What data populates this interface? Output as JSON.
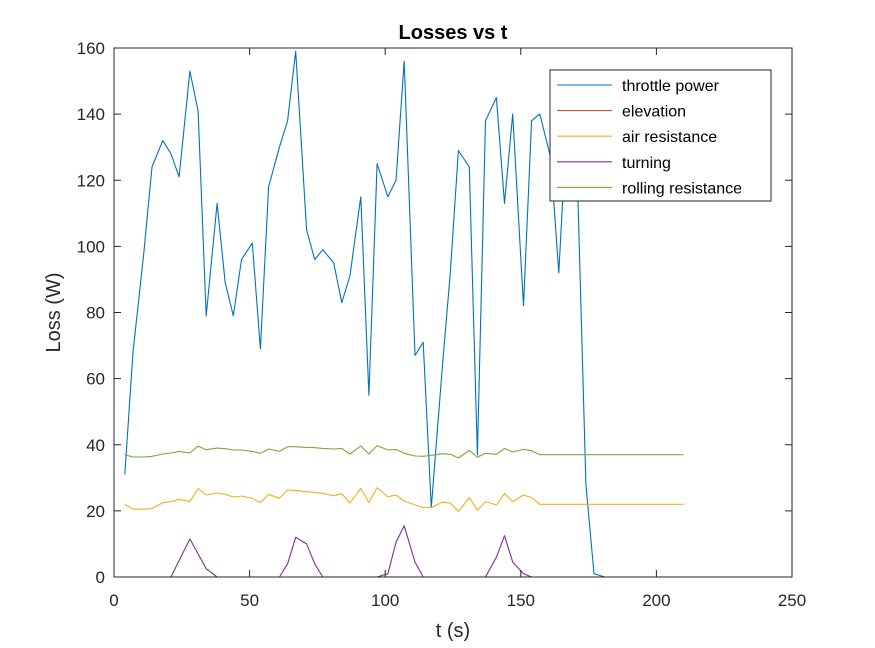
{
  "chart_data": {
    "type": "line",
    "title": "Losses vs t",
    "xlabel": "t (s)",
    "ylabel": "Loss (W)",
    "xlim": [
      0,
      250
    ],
    "ylim": [
      0,
      160
    ],
    "xticks": [
      0,
      50,
      100,
      150,
      200,
      250
    ],
    "yticks": [
      0,
      20,
      40,
      60,
      80,
      100,
      120,
      140,
      160
    ],
    "grid": false,
    "legend_position": "top-right",
    "x": [
      4,
      7,
      11,
      14,
      18,
      21,
      24,
      28,
      31,
      34,
      38,
      41,
      44,
      47,
      51,
      54,
      57,
      61,
      64,
      67,
      71,
      74,
      77,
      81,
      84,
      87,
      91,
      94,
      97,
      101,
      104,
      107,
      111,
      114,
      117,
      121,
      124,
      127,
      131,
      134,
      137,
      141,
      144,
      147,
      151,
      154,
      157,
      161,
      164,
      167,
      171,
      174,
      177,
      181,
      184,
      187,
      191,
      194,
      197,
      201,
      204,
      207,
      210
    ],
    "series": [
      {
        "name": "throttle power",
        "color": "#0072BD",
        "values": [
          31,
          68,
          98,
          124,
          132,
          128,
          121,
          153,
          141,
          79,
          113,
          89,
          79,
          96,
          101,
          69,
          118,
          130,
          138,
          159,
          105,
          96,
          99,
          95,
          83,
          91,
          115,
          55,
          125,
          115,
          120,
          156,
          67,
          71,
          21,
          63,
          92,
          129,
          124,
          37,
          138,
          145,
          113,
          140,
          82,
          138,
          140,
          127,
          92,
          138,
          116,
          28,
          1,
          0,
          0,
          0,
          0,
          0,
          0,
          0,
          0,
          0,
          0
        ]
      },
      {
        "name": "elevation",
        "color": "#D95319",
        "values": [
          0,
          0,
          0,
          0,
          0,
          0,
          0,
          0,
          0,
          0,
          0,
          0,
          0,
          0,
          0,
          0,
          0,
          0,
          0,
          0,
          0,
          0,
          0,
          0,
          0,
          0,
          0,
          0,
          0,
          0,
          0,
          0,
          0,
          0,
          0,
          0,
          0,
          0,
          0,
          0,
          0,
          0,
          0,
          0,
          0,
          0,
          0,
          0,
          0,
          0,
          0,
          0,
          0,
          0,
          0,
          0,
          0,
          0,
          0,
          0,
          0,
          0,
          0
        ]
      },
      {
        "name": "air resistance",
        "color": "#EDB120",
        "values": [
          22,
          20.5,
          20.5,
          20.7,
          22.5,
          22.8,
          23.5,
          22.8,
          26.8,
          24.8,
          25.4,
          25,
          24.2,
          24.5,
          23.8,
          22.5,
          25,
          23.8,
          26.3,
          26.2,
          25.8,
          25.6,
          25.3,
          24.6,
          25.2,
          22.4,
          26.8,
          22.5,
          27,
          24.3,
          24.8,
          23,
          21.8,
          21,
          21,
          22.6,
          22.4,
          19.8,
          24,
          20.2,
          22.8,
          21.8,
          25.2,
          22.8,
          24.8,
          24,
          22,
          22,
          22,
          22,
          22,
          22,
          22,
          22,
          22,
          22,
          22,
          22,
          22,
          22,
          22,
          22,
          22
        ]
      },
      {
        "name": "turning",
        "color": "#7E2F8E",
        "values": [
          0,
          0,
          0,
          0,
          0,
          0,
          5,
          11.5,
          7,
          2.5,
          0,
          0,
          0,
          0,
          0,
          0,
          0,
          0,
          4,
          12,
          10,
          4,
          0,
          0,
          0,
          0,
          0,
          0,
          0,
          1,
          10.5,
          15.5,
          4.5,
          0,
          0,
          0,
          0,
          0,
          0,
          0,
          0,
          6,
          12.5,
          4.5,
          1,
          0,
          0,
          0,
          0,
          0,
          0,
          0,
          0,
          0,
          0,
          0,
          0,
          0,
          0,
          0,
          0,
          0,
          0
        ]
      },
      {
        "name": "rolling resistance",
        "color": "#77AC30",
        "values": [
          37,
          36.3,
          36.3,
          36.5,
          37.2,
          37.5,
          38,
          37.5,
          39.6,
          38.5,
          39,
          38.8,
          38.4,
          38.4,
          38,
          37.4,
          38.7,
          38,
          39.4,
          39.4,
          39.2,
          39.1,
          38.9,
          38.7,
          38.9,
          37.2,
          39.6,
          37.2,
          39.7,
          38.4,
          38.6,
          37.4,
          36.6,
          36.5,
          36.8,
          37.3,
          37.1,
          36,
          38.3,
          36.2,
          37.4,
          37.1,
          38.9,
          37.8,
          38.6,
          38.2,
          37,
          37,
          37,
          37,
          37,
          37,
          37,
          37,
          37,
          37,
          37,
          37,
          37,
          37,
          37,
          37,
          37
        ]
      }
    ]
  }
}
